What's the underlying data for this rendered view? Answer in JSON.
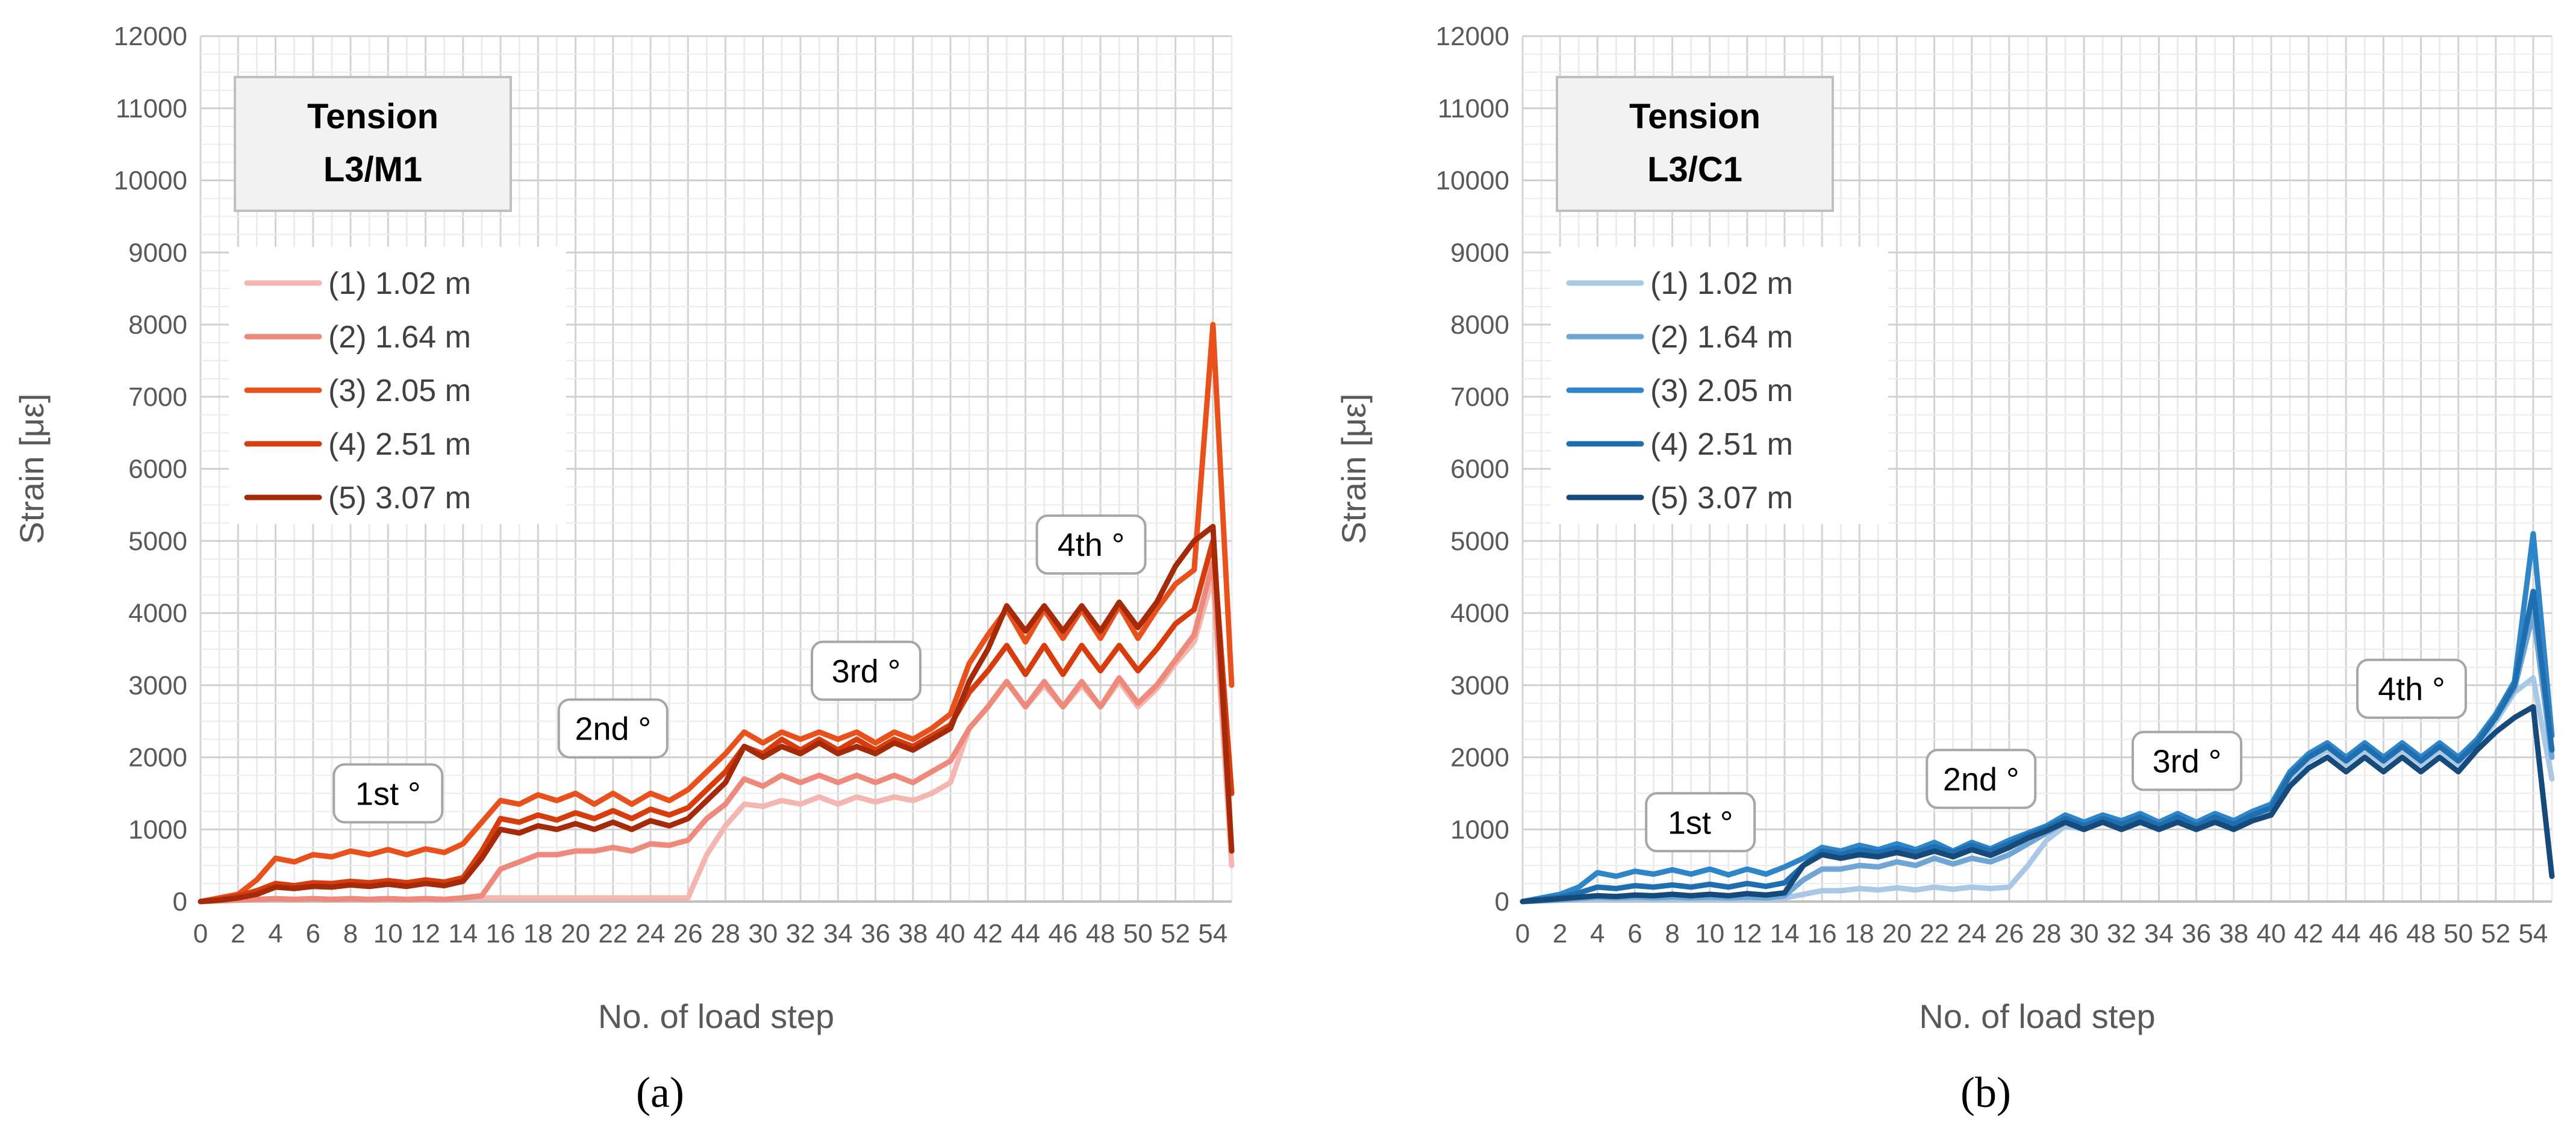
{
  "chart_data": [
    {
      "type": "line",
      "panel_label": "(a)",
      "title": "Tension\nL3/M1",
      "title_lines": [
        "Tension",
        "L3/M1"
      ],
      "xlabel": "No. of load step",
      "ylabel": "Strain [με]",
      "xlim": [
        0,
        55
      ],
      "ylim": [
        0,
        12000
      ],
      "xticks": [
        0,
        2,
        4,
        6,
        8,
        10,
        12,
        14,
        16,
        18,
        20,
        22,
        24,
        26,
        28,
        30,
        32,
        34,
        36,
        38,
        40,
        42,
        44,
        46,
        48,
        50,
        52,
        54
      ],
      "yticks": [
        0,
        1000,
        2000,
        3000,
        4000,
        5000,
        6000,
        7000,
        8000,
        9000,
        10000,
        11000,
        12000
      ],
      "grid": true,
      "legend_position": "upper-left",
      "x": [
        0,
        1,
        2,
        3,
        4,
        5,
        6,
        7,
        8,
        9,
        10,
        11,
        12,
        13,
        14,
        15,
        16,
        17,
        18,
        19,
        20,
        21,
        22,
        23,
        24,
        25,
        26,
        27,
        28,
        29,
        30,
        31,
        32,
        33,
        34,
        35,
        36,
        37,
        38,
        39,
        40,
        41,
        42,
        43,
        44,
        45,
        46,
        47,
        48,
        49,
        50,
        51,
        52,
        53,
        54,
        55
      ],
      "series": [
        {
          "name": "(1) 1.02 m",
          "color": "#f4b6b0",
          "values": [
            0,
            10,
            20,
            30,
            40,
            30,
            40,
            30,
            40,
            30,
            40,
            30,
            40,
            30,
            50,
            50,
            50,
            50,
            50,
            50,
            50,
            50,
            50,
            50,
            50,
            50,
            50,
            650,
            1050,
            1350,
            1320,
            1400,
            1350,
            1450,
            1350,
            1450,
            1380,
            1450,
            1400,
            1500,
            1650,
            2400,
            2700,
            3050,
            2700,
            3000,
            2700,
            3000,
            2700,
            3050,
            2700,
            2950,
            3300,
            3600,
            4500,
            500
          ]
        },
        {
          "name": "(2) 1.64 m",
          "color": "#ee8a7c",
          "values": [
            0,
            10,
            20,
            30,
            40,
            30,
            40,
            30,
            40,
            30,
            40,
            30,
            40,
            30,
            50,
            80,
            450,
            550,
            650,
            650,
            700,
            700,
            750,
            700,
            800,
            780,
            850,
            1150,
            1350,
            1700,
            1600,
            1750,
            1650,
            1750,
            1650,
            1750,
            1650,
            1750,
            1650,
            1800,
            1950,
            2400,
            2700,
            3050,
            2700,
            3050,
            2700,
            3050,
            2700,
            3100,
            2750,
            3000,
            3350,
            3700,
            4700,
            700
          ]
        },
        {
          "name": "(3) 2.05 m",
          "color": "#e8501c",
          "values": [
            0,
            50,
            100,
            300,
            600,
            550,
            650,
            620,
            700,
            650,
            720,
            650,
            730,
            680,
            800,
            1100,
            1400,
            1350,
            1480,
            1400,
            1500,
            1350,
            1500,
            1350,
            1500,
            1400,
            1550,
            1800,
            2050,
            2350,
            2200,
            2350,
            2250,
            2350,
            2250,
            2350,
            2200,
            2350,
            2250,
            2400,
            2600,
            3300,
            3700,
            4050,
            3600,
            4050,
            3650,
            4050,
            3650,
            4100,
            3650,
            4050,
            4400,
            4600,
            8000,
            3000
          ]
        },
        {
          "name": "(4) 2.51 m",
          "color": "#d63c0c",
          "values": [
            0,
            30,
            80,
            150,
            250,
            220,
            260,
            250,
            280,
            260,
            290,
            260,
            300,
            270,
            330,
            700,
            1150,
            1100,
            1200,
            1130,
            1230,
            1150,
            1260,
            1150,
            1280,
            1200,
            1300,
            1550,
            1800,
            2150,
            2050,
            2250,
            2100,
            2250,
            2100,
            2250,
            2100,
            2250,
            2150,
            2300,
            2450,
            2900,
            3200,
            3550,
            3150,
            3550,
            3150,
            3550,
            3200,
            3550,
            3200,
            3500,
            3850,
            4050,
            5000,
            1500
          ]
        },
        {
          "name": "(5) 3.07 m",
          "color": "#a52a0a",
          "values": [
            0,
            20,
            50,
            100,
            200,
            180,
            210,
            200,
            230,
            210,
            240,
            210,
            250,
            220,
            280,
            600,
            1000,
            950,
            1050,
            1000,
            1080,
            1000,
            1100,
            1000,
            1120,
            1050,
            1150,
            1400,
            1650,
            2150,
            2000,
            2150,
            2050,
            2200,
            2050,
            2150,
            2050,
            2200,
            2100,
            2250,
            2400,
            3050,
            3500,
            4100,
            3750,
            4100,
            3750,
            4100,
            3750,
            4150,
            3800,
            4150,
            4650,
            5000,
            5200,
            700
          ]
        }
      ],
      "annotations": [
        {
          "text": "1st °",
          "x": 10,
          "y": 1500
        },
        {
          "text": "2nd °",
          "x": 22,
          "y": 2400
        },
        {
          "text": "3rd °",
          "x": 35.5,
          "y": 3200
        },
        {
          "text": "4th °",
          "x": 47.5,
          "y": 4950
        }
      ]
    },
    {
      "type": "line",
      "panel_label": "(b)",
      "title": "Tension\nL3/C1",
      "title_lines": [
        "Tension",
        "L3/C1"
      ],
      "xlabel": "No. of load step",
      "ylabel": "Strain [με]",
      "xlim": [
        0,
        55
      ],
      "ylim": [
        0,
        12000
      ],
      "xticks": [
        0,
        2,
        4,
        6,
        8,
        10,
        12,
        14,
        16,
        18,
        20,
        22,
        24,
        26,
        28,
        30,
        32,
        34,
        36,
        38,
        40,
        42,
        44,
        46,
        48,
        50,
        52,
        54
      ],
      "yticks": [
        0,
        1000,
        2000,
        3000,
        4000,
        5000,
        6000,
        7000,
        8000,
        9000,
        10000,
        11000,
        12000
      ],
      "grid": true,
      "legend_position": "upper-left",
      "x": [
        0,
        1,
        2,
        3,
        4,
        5,
        6,
        7,
        8,
        9,
        10,
        11,
        12,
        13,
        14,
        15,
        16,
        17,
        18,
        19,
        20,
        21,
        22,
        23,
        24,
        25,
        26,
        27,
        28,
        29,
        30,
        31,
        32,
        33,
        34,
        35,
        36,
        37,
        38,
        39,
        40,
        41,
        42,
        43,
        44,
        45,
        46,
        47,
        48,
        49,
        50,
        51,
        52,
        53,
        54,
        55
      ],
      "series": [
        {
          "name": "(1) 1.02 m",
          "color": "#a9c8e6",
          "values": [
            0,
            10,
            20,
            30,
            40,
            30,
            40,
            30,
            40,
            30,
            40,
            30,
            40,
            30,
            50,
            100,
            150,
            150,
            180,
            160,
            190,
            160,
            200,
            170,
            200,
            180,
            200,
            500,
            850,
            1050,
            1000,
            1150,
            1050,
            1150,
            1050,
            1150,
            1050,
            1150,
            1050,
            1150,
            1250,
            1700,
            1950,
            2100,
            1900,
            2100,
            1900,
            2100,
            1900,
            2100,
            1900,
            2150,
            2500,
            2900,
            3100,
            1700
          ]
        },
        {
          "name": "(2) 1.64 m",
          "color": "#6fa6d6",
          "values": [
            0,
            10,
            20,
            40,
            60,
            50,
            60,
            50,
            60,
            50,
            60,
            50,
            60,
            50,
            80,
            300,
            450,
            450,
            500,
            480,
            550,
            500,
            600,
            520,
            600,
            550,
            650,
            800,
            950,
            1100,
            1000,
            1150,
            1050,
            1150,
            1050,
            1150,
            1050,
            1150,
            1050,
            1150,
            1250,
            1750,
            2000,
            2150,
            1950,
            2150,
            1950,
            2150,
            1950,
            2150,
            1950,
            2200,
            2550,
            2950,
            4000,
            2000
          ]
        },
        {
          "name": "(3) 2.05 m",
          "color": "#2e86c8",
          "values": [
            0,
            50,
            100,
            200,
            400,
            350,
            420,
            380,
            440,
            380,
            450,
            370,
            450,
            380,
            480,
            600,
            750,
            700,
            780,
            720,
            800,
            720,
            820,
            700,
            820,
            730,
            850,
            950,
            1050,
            1200,
            1100,
            1200,
            1120,
            1220,
            1100,
            1220,
            1100,
            1220,
            1120,
            1250,
            1350,
            1800,
            2050,
            2200,
            2000,
            2200,
            2000,
            2200,
            2000,
            2200,
            2000,
            2250,
            2600,
            3050,
            5100,
            2300
          ]
        },
        {
          "name": "(4) 2.51 m",
          "color": "#1f6fb0",
          "values": [
            0,
            30,
            60,
            120,
            200,
            180,
            220,
            200,
            230,
            200,
            240,
            200,
            250,
            210,
            260,
            500,
            700,
            650,
            720,
            680,
            740,
            680,
            760,
            680,
            780,
            700,
            800,
            920,
            1020,
            1150,
            1050,
            1150,
            1070,
            1170,
            1050,
            1170,
            1050,
            1170,
            1070,
            1200,
            1300,
            1750,
            2000,
            2150,
            1950,
            2150,
            1950,
            2150,
            1950,
            2150,
            1950,
            2200,
            2550,
            3000,
            4300,
            2100
          ]
        },
        {
          "name": "(5) 3.07 m",
          "color": "#164a7a",
          "values": [
            0,
            20,
            40,
            60,
            80,
            70,
            90,
            80,
            100,
            80,
            100,
            80,
            110,
            90,
            120,
            500,
            650,
            600,
            650,
            620,
            680,
            620,
            700,
            620,
            720,
            640,
            750,
            880,
            980,
            1100,
            1000,
            1100,
            1000,
            1100,
            1000,
            1100,
            1000,
            1100,
            1000,
            1120,
            1200,
            1600,
            1850,
            2000,
            1800,
            2000,
            1800,
            2000,
            1800,
            2000,
            1800,
            2100,
            2350,
            2550,
            2700,
            350
          ]
        }
      ],
      "annotations": [
        {
          "text": "1st °",
          "x": 9.5,
          "y": 1100
        },
        {
          "text": "2nd °",
          "x": 24.5,
          "y": 1700
        },
        {
          "text": "3rd °",
          "x": 35.5,
          "y": 1950
        },
        {
          "text": "4th °",
          "x": 47.5,
          "y": 2950
        }
      ]
    }
  ]
}
